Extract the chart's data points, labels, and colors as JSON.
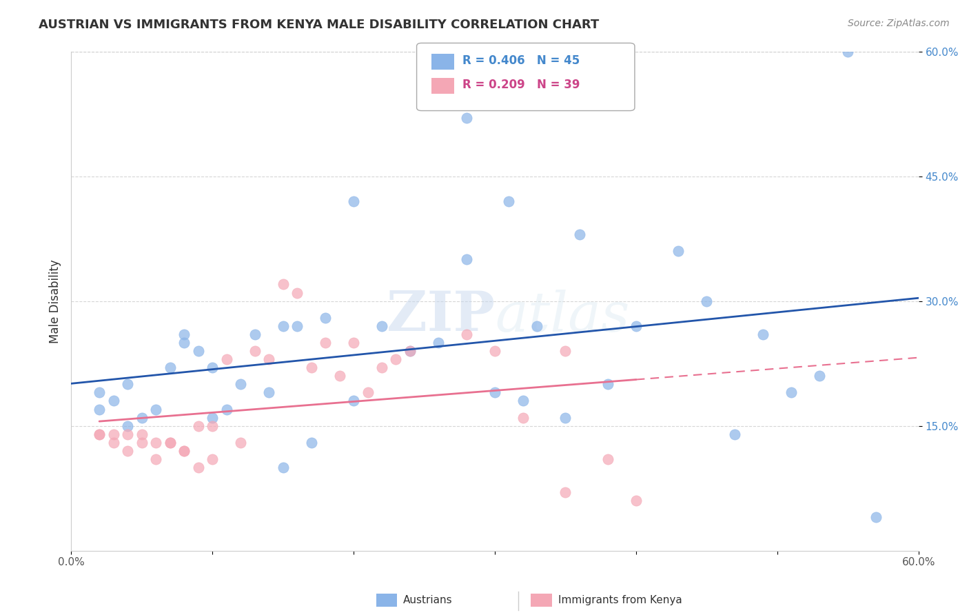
{
  "title": "AUSTRIAN VS IMMIGRANTS FROM KENYA MALE DISABILITY CORRELATION CHART",
  "source": "Source: ZipAtlas.com",
  "xlabel": "",
  "ylabel": "Male Disability",
  "xlim": [
    0.0,
    0.6
  ],
  "ylim": [
    0.0,
    0.6
  ],
  "yticks": [
    0.15,
    0.3,
    0.45,
    0.6
  ],
  "yticklabels_right": [
    "15.0%",
    "30.0%",
    "45.0%",
    "60.0%"
  ],
  "blue_R": 0.406,
  "blue_N": 45,
  "pink_R": 0.209,
  "pink_N": 39,
  "blue_color": "#8ab4e8",
  "pink_color": "#f4a7b5",
  "blue_line_color": "#2255aa",
  "pink_line_color": "#e87090",
  "blue_label": "Austrians",
  "pink_label": "Immigrants from Kenya",
  "watermark_zip": "ZIP",
  "watermark_atlas": "atlas",
  "blue_scatter_x": [
    0.28,
    0.55,
    0.2,
    0.31,
    0.36,
    0.04,
    0.08,
    0.1,
    0.12,
    0.14,
    0.02,
    0.03,
    0.04,
    0.05,
    0.06,
    0.07,
    0.08,
    0.09,
    0.1,
    0.11,
    0.13,
    0.15,
    0.16,
    0.18,
    0.2,
    0.22,
    0.24,
    0.26,
    0.28,
    0.3,
    0.33,
    0.35,
    0.38,
    0.4,
    0.43,
    0.45,
    0.47,
    0.49,
    0.51,
    0.53,
    0.57,
    0.02,
    0.15,
    0.17,
    0.32
  ],
  "blue_scatter_y": [
    0.52,
    0.6,
    0.42,
    0.42,
    0.38,
    0.2,
    0.26,
    0.22,
    0.2,
    0.19,
    0.19,
    0.18,
    0.15,
    0.16,
    0.17,
    0.22,
    0.25,
    0.24,
    0.16,
    0.17,
    0.26,
    0.27,
    0.27,
    0.28,
    0.18,
    0.27,
    0.24,
    0.25,
    0.35,
    0.19,
    0.27,
    0.16,
    0.2,
    0.27,
    0.36,
    0.3,
    0.14,
    0.26,
    0.19,
    0.21,
    0.04,
    0.17,
    0.1,
    0.13,
    0.18
  ],
  "pink_scatter_x": [
    0.02,
    0.03,
    0.04,
    0.05,
    0.06,
    0.07,
    0.08,
    0.09,
    0.1,
    0.11,
    0.12,
    0.13,
    0.14,
    0.15,
    0.16,
    0.17,
    0.18,
    0.19,
    0.2,
    0.21,
    0.22,
    0.23,
    0.24,
    0.28,
    0.3,
    0.32,
    0.35,
    0.38,
    0.02,
    0.03,
    0.04,
    0.05,
    0.06,
    0.07,
    0.08,
    0.09,
    0.1,
    0.35,
    0.4
  ],
  "pink_scatter_y": [
    0.14,
    0.13,
    0.14,
    0.14,
    0.13,
    0.13,
    0.12,
    0.15,
    0.15,
    0.23,
    0.13,
    0.24,
    0.23,
    0.32,
    0.31,
    0.22,
    0.25,
    0.21,
    0.25,
    0.19,
    0.22,
    0.23,
    0.24,
    0.26,
    0.24,
    0.16,
    0.07,
    0.11,
    0.14,
    0.14,
    0.12,
    0.13,
    0.11,
    0.13,
    0.12,
    0.1,
    0.11,
    0.24,
    0.06
  ]
}
